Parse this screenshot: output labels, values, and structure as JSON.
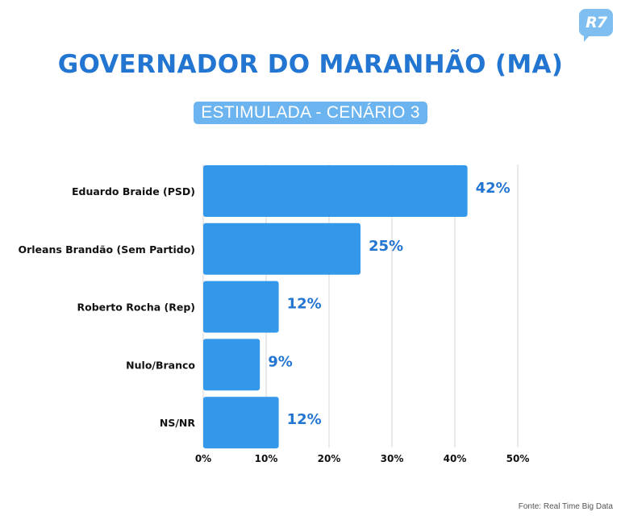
{
  "brand": {
    "logo_text": "R7",
    "color": "#7fbef0"
  },
  "header": {
    "title": "GOVERNADOR DO MARANHÃO (MA)",
    "subtitle": "ESTIMULADA - CENÁRIO 3"
  },
  "source": "Fonte: Real Time Big Data",
  "colors": {
    "bar": "#3498ea",
    "title": "#2275d0",
    "value_label": "#2275d0",
    "grid": "#d5d5d5"
  },
  "chart_data": {
    "type": "bar",
    "orientation": "horizontal",
    "categories": [
      "Eduardo Braide (PSD)",
      "Orleans Brandão (Sem Partido)",
      "Roberto Rocha (Rep)",
      "Nulo/Branco",
      "NS/NR"
    ],
    "values": [
      42,
      25,
      12,
      9,
      12
    ],
    "value_labels": [
      "42%",
      "25%",
      "12%",
      "9%",
      "12%"
    ],
    "xlim": [
      0,
      50
    ],
    "xticks": [
      0,
      10,
      20,
      30,
      40,
      50
    ],
    "xtick_labels": [
      "0%",
      "10%",
      "20%",
      "30%",
      "40%",
      "50%"
    ],
    "grid": true
  }
}
